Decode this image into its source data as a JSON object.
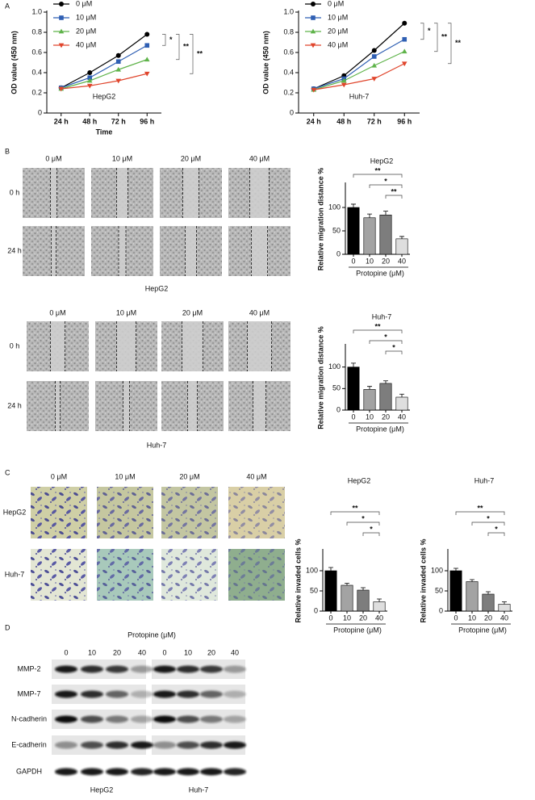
{
  "panel_labels": [
    "A",
    "B",
    "C",
    "D"
  ],
  "chart_data": [
    {
      "type": "line",
      "categories": [
        "24 h",
        "48 h",
        "72 h",
        "96 h"
      ],
      "ylabel": "OD value (450 nm)",
      "xlabel": "Time",
      "annotation": "HepG2",
      "ylim": [
        0,
        1
      ],
      "yticks": [
        0,
        0.2,
        0.4,
        0.6,
        0.8,
        {
          "value": 1,
          "label": "1.0"
        }
      ],
      "series": [
        {
          "name": "0 μM",
          "color": "#000000",
          "marker": "circle",
          "values": [
            0.25,
            0.4,
            0.57,
            0.78
          ]
        },
        {
          "name": "10 μM",
          "color": "#2f5fb3",
          "marker": "square",
          "values": [
            0.25,
            0.35,
            0.51,
            0.67
          ]
        },
        {
          "name": "20 μM",
          "color": "#5fb34a",
          "marker": "triangle-up",
          "values": [
            0.24,
            0.32,
            0.43,
            0.53
          ]
        },
        {
          "name": "40 μM",
          "color": "#e0452c",
          "marker": "triangle-down",
          "values": [
            0.24,
            0.27,
            0.32,
            0.39
          ]
        }
      ],
      "significance": [
        "*",
        "**",
        "**"
      ]
    },
    {
      "type": "line",
      "categories": [
        "24 h",
        "48 h",
        "72 h",
        "96 h"
      ],
      "ylabel": "OD value (450 nm)",
      "annotation": "Huh-7",
      "ylim": [
        0,
        1
      ],
      "yticks": [
        0,
        0.2,
        0.4,
        0.6,
        0.8,
        {
          "value": 1,
          "label": "1.0"
        }
      ],
      "series": [
        {
          "name": "0 μM",
          "color": "#000000",
          "marker": "circle",
          "values": [
            0.24,
            0.37,
            0.62,
            0.89
          ]
        },
        {
          "name": "10 μM",
          "color": "#2f5fb3",
          "marker": "square",
          "values": [
            0.24,
            0.34,
            0.56,
            0.73
          ]
        },
        {
          "name": "20 μM",
          "color": "#5fb34a",
          "marker": "triangle-up",
          "values": [
            0.23,
            0.32,
            0.47,
            0.61
          ]
        },
        {
          "name": "40 μM",
          "color": "#e0452c",
          "marker": "triangle-down",
          "values": [
            0.23,
            0.28,
            0.34,
            0.49
          ]
        }
      ],
      "significance": [
        "*",
        "**",
        "**"
      ]
    },
    {
      "type": "bar",
      "title": "HepG2",
      "categories": [
        "0",
        "10",
        "20",
        "40"
      ],
      "values": [
        100,
        78,
        84,
        33
      ],
      "errors": [
        7,
        8,
        8,
        5
      ],
      "colors": [
        "#000000",
        "#a3a3a3",
        "#7d7d7d",
        "#dedede"
      ],
      "ylabel": "Relative migration distance %",
      "xlabel": "Protopine (μM)",
      "ylim": [
        0,
        150
      ],
      "yticks": [
        0,
        50,
        100
      ],
      "significance": [
        "**",
        "*",
        "**"
      ]
    },
    {
      "type": "bar",
      "title": "Huh-7",
      "categories": [
        "0",
        "10",
        "20",
        "40"
      ],
      "values": [
        100,
        48,
        62,
        30
      ],
      "errors": [
        9,
        7,
        6,
        7
      ],
      "colors": [
        "#000000",
        "#a3a3a3",
        "#7d7d7d",
        "#dedede"
      ],
      "ylabel": "Relative migration distance %",
      "xlabel": "Protopine (μM)",
      "ylim": [
        0,
        150
      ],
      "yticks": [
        0,
        50,
        100
      ],
      "significance": [
        "**",
        "*",
        "*"
      ]
    },
    {
      "type": "bar",
      "title": "HepG2",
      "categories": [
        "0",
        "10",
        "20",
        "40"
      ],
      "values": [
        100,
        64,
        52,
        23
      ],
      "errors": [
        8,
        5,
        6,
        7
      ],
      "colors": [
        "#000000",
        "#a3a3a3",
        "#7d7d7d",
        "#dedede"
      ],
      "ylabel": "Relative invaded cells %",
      "xlabel": "Protopine (μM)",
      "ylim": [
        0,
        150
      ],
      "yticks": [
        0,
        50,
        100
      ],
      "significance": [
        "**",
        "*",
        "*"
      ]
    },
    {
      "type": "bar",
      "title": "Huh-7",
      "categories": [
        "0",
        "10",
        "20",
        "40"
      ],
      "values": [
        100,
        73,
        42,
        17
      ],
      "errors": [
        6,
        5,
        6,
        6
      ],
      "colors": [
        "#000000",
        "#a3a3a3",
        "#7d7d7d",
        "#dedede"
      ],
      "ylabel": "Relative invaded cells %",
      "xlabel": "Protopine (μM)",
      "ylim": [
        0,
        150
      ],
      "yticks": [
        0,
        50,
        100
      ],
      "significance": [
        "**",
        "*",
        "*"
      ]
    }
  ],
  "migration": {
    "columns": [
      "0 μM",
      "10 μM",
      "20 μM",
      "40 μM"
    ],
    "rows": [
      "0 h",
      "24 h"
    ],
    "captions": [
      "HepG2",
      "Huh-7"
    ]
  },
  "invasion": {
    "columns": [
      "0 μM",
      "10 μM",
      "20 μM",
      "40 μM"
    ],
    "rows": [
      "HepG2",
      "Huh-7"
    ]
  },
  "western": {
    "title": "Protopine (μM)",
    "lanes": [
      "0",
      "10",
      "20",
      "40"
    ],
    "proteins": [
      "MMP-2",
      "MMP-7",
      "N-cadherin",
      "E-cadherin",
      "GAPDH"
    ],
    "cell_lines": [
      "HepG2",
      "Huh-7"
    ]
  }
}
